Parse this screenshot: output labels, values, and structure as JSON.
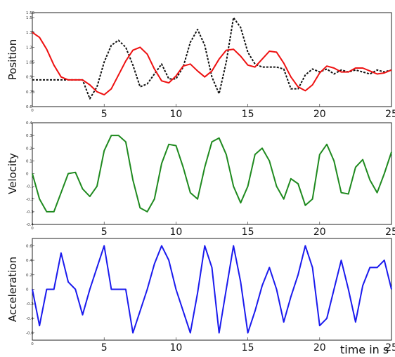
{
  "chart_data": [
    {
      "type": "line",
      "ylabel": "Position",
      "xlim": [
        0,
        25
      ],
      "ylim": [
        0.6,
        1.55
      ],
      "xticks": [
        5,
        10,
        15,
        20,
        25
      ],
      "xtick_labels": [
        "5",
        "10",
        "15",
        "20",
        "25"
      ],
      "yticks": [
        0.6,
        0.75,
        0.9,
        1.05,
        1.2,
        1.35,
        1.5,
        1.55
      ],
      "ytick_labels": [
        "0.6",
        "0.75",
        "0.9",
        "1.05",
        "1.2",
        "1.35",
        "1.5",
        "1.55"
      ],
      "grid": false,
      "series": [
        {
          "style": "dashed",
          "color": "#111111",
          "x": [
            0,
            0.5,
            1,
            1.5,
            2,
            2.5,
            3,
            3.5,
            4,
            4.5,
            5,
            5.5,
            6,
            6.5,
            7,
            7.5,
            8,
            8.5,
            9,
            9.5,
            10,
            10.5,
            11,
            11.5,
            12,
            12.5,
            13,
            13.5,
            14,
            14.5,
            15,
            15.5,
            16,
            16.5,
            17,
            17.5,
            18,
            18.5,
            19,
            19.5,
            20,
            20.5,
            21,
            21.5,
            22,
            22.5,
            23,
            23.5,
            24,
            24.5,
            25
          ],
          "y": [
            0.87,
            0.87,
            0.87,
            0.87,
            0.87,
            0.87,
            0.87,
            0.87,
            0.68,
            0.8,
            1.05,
            1.22,
            1.27,
            1.2,
            1.02,
            0.8,
            0.83,
            0.93,
            1.03,
            0.88,
            0.88,
            1.0,
            1.25,
            1.38,
            1.22,
            0.9,
            0.73,
            1.05,
            1.5,
            1.4,
            1.15,
            1.03,
            1.0,
            1.0,
            1.0,
            0.98,
            0.78,
            0.78,
            0.92,
            0.98,
            0.95,
            0.98,
            0.93,
            0.97,
            0.95,
            0.97,
            0.95,
            0.93,
            0.97,
            0.95,
            0.97
          ]
        },
        {
          "style": "solid",
          "color": "#ee1111",
          "x": [
            0,
            0.5,
            1,
            1.5,
            2,
            2.5,
            3,
            3.5,
            4,
            4.5,
            5,
            5.5,
            6,
            6.5,
            7,
            7.5,
            8,
            8.5,
            9,
            9.5,
            10,
            10.5,
            11,
            11.5,
            12,
            12.5,
            13,
            13.5,
            14,
            14.5,
            15,
            15.5,
            16,
            16.5,
            17,
            17.5,
            18,
            18.5,
            19,
            19.5,
            20,
            20.5,
            21,
            21.5,
            22,
            22.5,
            23,
            23.5,
            24,
            24.5,
            25
          ],
          "y": [
            1.35,
            1.3,
            1.18,
            1.02,
            0.9,
            0.87,
            0.87,
            0.87,
            0.82,
            0.75,
            0.72,
            0.78,
            0.92,
            1.06,
            1.17,
            1.2,
            1.13,
            0.98,
            0.86,
            0.84,
            0.91,
            1.01,
            1.03,
            0.96,
            0.9,
            0.96,
            1.08,
            1.17,
            1.18,
            1.11,
            1.02,
            1.0,
            1.08,
            1.16,
            1.15,
            1.04,
            0.9,
            0.8,
            0.76,
            0.82,
            0.94,
            1.01,
            0.99,
            0.95,
            0.95,
            0.99,
            0.99,
            0.96,
            0.93,
            0.94,
            0.97
          ]
        }
      ]
    },
    {
      "type": "line",
      "ylabel": "Velocity",
      "xlim": [
        0,
        25
      ],
      "ylim": [
        -0.4,
        0.4
      ],
      "xticks": [
        5,
        10,
        15,
        20,
        25
      ],
      "xtick_labels": [
        "5",
        "10",
        "15",
        "20",
        "25"
      ],
      "yticks": [
        -0.4,
        -0.3,
        -0.2,
        -0.1,
        0,
        0.1,
        0.2,
        0.3,
        0.4
      ],
      "ytick_labels": [
        "-0.4",
        "-0.3",
        "-0.2",
        "-0.1",
        "0",
        "0.1",
        "0.2",
        "0.3",
        "0.4"
      ],
      "grid": false,
      "series": [
        {
          "style": "solid",
          "color": "#1f8a1f",
          "x": [
            0,
            0.5,
            1,
            1.5,
            2,
            2.5,
            3,
            3.5,
            4,
            4.5,
            5,
            5.5,
            6,
            6.5,
            7,
            7.5,
            8,
            8.5,
            9,
            9.5,
            10,
            10.5,
            11,
            11.5,
            12,
            12.5,
            13,
            13.5,
            14,
            14.5,
            15,
            15.5,
            16,
            16.5,
            17,
            17.5,
            18,
            18.5,
            19,
            19.5,
            20,
            20.5,
            21,
            21.5,
            22,
            22.5,
            23,
            23.5,
            24,
            24.5,
            25
          ],
          "y": [
            0.0,
            -0.2,
            -0.3,
            -0.3,
            -0.15,
            0.0,
            0.01,
            -0.12,
            -0.18,
            -0.1,
            0.18,
            0.3,
            0.3,
            0.25,
            -0.05,
            -0.27,
            -0.3,
            -0.2,
            0.08,
            0.23,
            0.22,
            0.05,
            -0.15,
            -0.2,
            0.05,
            0.25,
            0.28,
            0.15,
            -0.1,
            -0.23,
            -0.1,
            0.15,
            0.2,
            0.1,
            -0.1,
            -0.2,
            -0.04,
            -0.08,
            -0.25,
            -0.2,
            0.15,
            0.23,
            0.1,
            -0.15,
            -0.16,
            0.05,
            0.11,
            -0.05,
            -0.15,
            0.0,
            0.17
          ]
        }
      ]
    },
    {
      "type": "line",
      "ylabel": "Acceleration",
      "xlabel": "time in s",
      "xlim": [
        0,
        25
      ],
      "ylim": [
        -0.7,
        0.7
      ],
      "xticks": [
        5,
        10,
        15,
        20,
        25
      ],
      "xtick_labels": [
        "5",
        "10",
        "15",
        "20",
        "25"
      ],
      "yticks": [
        -0.6,
        -0.4,
        -0.2,
        0,
        0.2,
        0.4,
        0.6
      ],
      "ytick_labels": [
        "-0.6",
        "-0.4",
        "-0.2",
        "0",
        "0.2",
        "0.4",
        "0.6"
      ],
      "grid": false,
      "series": [
        {
          "style": "solid",
          "color": "#1a1aee",
          "x": [
            0,
            0.5,
            1,
            1.5,
            2,
            2.5,
            3,
            3.5,
            4,
            4.5,
            5,
            5.5,
            6,
            6.5,
            7,
            7.5,
            8,
            8.5,
            9,
            9.5,
            10,
            10.5,
            11,
            11.5,
            12,
            12.5,
            13,
            13.5,
            14,
            14.5,
            15,
            15.5,
            16,
            16.5,
            17,
            17.5,
            18,
            18.5,
            19,
            19.5,
            20,
            20.5,
            21,
            21.5,
            22,
            22.5,
            23,
            23.5,
            24,
            24.5,
            25
          ],
          "y": [
            0.0,
            -0.5,
            0.0,
            0.0,
            0.5,
            0.1,
            0.0,
            -0.35,
            0.0,
            0.3,
            0.6,
            0.0,
            0.0,
            0.0,
            -0.6,
            -0.3,
            0.0,
            0.35,
            0.6,
            0.4,
            0.0,
            -0.3,
            -0.6,
            -0.05,
            0.6,
            0.3,
            -0.6,
            0.0,
            0.6,
            0.1,
            -0.6,
            -0.3,
            0.05,
            0.3,
            0.0,
            -0.45,
            -0.1,
            0.2,
            0.6,
            0.3,
            -0.5,
            -0.4,
            0.0,
            0.4,
            0.0,
            -0.45,
            0.05,
            0.3,
            0.3,
            0.4,
            0.0
          ]
        }
      ]
    }
  ]
}
